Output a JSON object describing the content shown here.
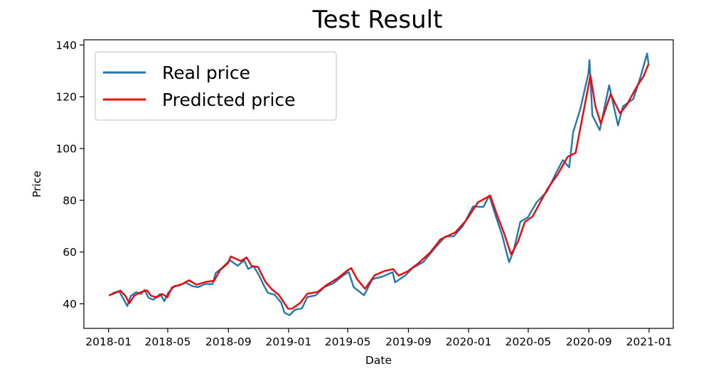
{
  "chart_data": {
    "type": "line",
    "title": "Test Result",
    "xlabel": "Date",
    "ylabel": "Price",
    "x_range": [
      "2017-11-12",
      "2021-02-19"
    ],
    "ylim": [
      30.5,
      142
    ],
    "xticks": [
      "2018-01",
      "2018-05",
      "2018-09",
      "2019-01",
      "2019-05",
      "2019-09",
      "2020-01",
      "2020-05",
      "2020-09",
      "2021-01"
    ],
    "yticks": [
      40,
      60,
      80,
      100,
      120,
      140
    ],
    "grid": false,
    "legend_position": "upper-left",
    "series": [
      {
        "name": "Real price",
        "color": "#1f77b4",
        "points": [
          [
            "2018-01-02",
            43.1
          ],
          [
            "2018-01-12",
            44.3
          ],
          [
            "2018-01-22",
            44.9
          ],
          [
            "2018-01-31",
            42.0
          ],
          [
            "2018-02-08",
            39.1
          ],
          [
            "2018-02-15",
            43.0
          ],
          [
            "2018-02-26",
            44.5
          ],
          [
            "2018-03-08",
            43.8
          ],
          [
            "2018-03-15",
            45.4
          ],
          [
            "2018-03-23",
            42.3
          ],
          [
            "2018-04-02",
            41.6
          ],
          [
            "2018-04-16",
            43.8
          ],
          [
            "2018-04-24",
            41.0
          ],
          [
            "2018-05-02",
            44.2
          ],
          [
            "2018-05-15",
            46.9
          ],
          [
            "2018-05-25",
            47.1
          ],
          [
            "2018-06-06",
            48.2
          ],
          [
            "2018-06-20",
            46.8
          ],
          [
            "2018-07-01",
            46.4
          ],
          [
            "2018-07-16",
            47.7
          ],
          [
            "2018-07-31",
            47.6
          ],
          [
            "2018-08-06",
            51.8
          ],
          [
            "2018-08-20",
            54.0
          ],
          [
            "2018-09-04",
            56.8
          ],
          [
            "2018-09-20",
            54.7
          ],
          [
            "2018-10-03",
            56.8
          ],
          [
            "2018-10-11",
            53.5
          ],
          [
            "2018-10-22",
            54.5
          ],
          [
            "2018-11-01",
            51.4
          ],
          [
            "2018-11-12",
            47.0
          ],
          [
            "2018-11-20",
            44.2
          ],
          [
            "2018-12-04",
            43.5
          ],
          [
            "2018-12-17",
            40.4
          ],
          [
            "2018-12-24",
            36.5
          ],
          [
            "2019-01-03",
            35.6
          ],
          [
            "2019-01-14",
            37.7
          ],
          [
            "2019-01-28",
            38.2
          ],
          [
            "2019-02-08",
            42.6
          ],
          [
            "2019-02-25",
            43.3
          ],
          [
            "2019-03-15",
            46.5
          ],
          [
            "2019-04-01",
            47.8
          ],
          [
            "2019-04-22",
            51.0
          ],
          [
            "2019-05-03",
            52.3
          ],
          [
            "2019-05-13",
            46.4
          ],
          [
            "2019-06-03",
            43.3
          ],
          [
            "2019-06-20",
            49.5
          ],
          [
            "2019-07-10",
            50.5
          ],
          [
            "2019-07-31",
            52.2
          ],
          [
            "2019-08-05",
            48.3
          ],
          [
            "2019-08-26",
            51.0
          ],
          [
            "2019-09-10",
            53.9
          ],
          [
            "2019-10-01",
            56.1
          ],
          [
            "2019-10-25",
            61.6
          ],
          [
            "2019-11-15",
            66.0
          ],
          [
            "2019-12-02",
            66.1
          ],
          [
            "2019-12-20",
            69.9
          ],
          [
            "2020-01-10",
            77.6
          ],
          [
            "2020-01-31",
            77.4
          ],
          [
            "2020-02-12",
            81.8
          ],
          [
            "2020-02-24",
            74.5
          ],
          [
            "2020-03-09",
            66.5
          ],
          [
            "2020-03-23",
            56.1
          ],
          [
            "2020-04-01",
            60.2
          ],
          [
            "2020-04-15",
            71.7
          ],
          [
            "2020-04-30",
            73.4
          ],
          [
            "2020-05-18",
            79.2
          ],
          [
            "2020-06-08",
            83.4
          ],
          [
            "2020-06-25",
            90.0
          ],
          [
            "2020-07-10",
            95.5
          ],
          [
            "2020-07-23",
            92.7
          ],
          [
            "2020-07-31",
            106.3
          ],
          [
            "2020-08-14",
            114.9
          ],
          [
            "2020-08-31",
            129.0
          ],
          [
            "2020-09-02",
            134.2
          ],
          [
            "2020-09-08",
            112.8
          ],
          [
            "2020-09-23",
            107.1
          ],
          [
            "2020-10-12",
            124.4
          ],
          [
            "2020-10-30",
            108.9
          ],
          [
            "2020-11-09",
            116.3
          ],
          [
            "2020-11-30",
            119.1
          ],
          [
            "2020-12-15",
            127.9
          ],
          [
            "2020-12-28",
            136.7
          ],
          [
            "2020-12-31",
            132.7
          ]
        ]
      },
      {
        "name": "Predicted price",
        "color": "#ff0000",
        "points": [
          [
            "2018-01-02",
            43.3
          ],
          [
            "2018-01-15",
            44.2
          ],
          [
            "2018-01-25",
            45.1
          ],
          [
            "2018-02-05",
            42.8
          ],
          [
            "2018-02-12",
            40.2
          ],
          [
            "2018-02-22",
            43.1
          ],
          [
            "2018-03-05",
            44.3
          ],
          [
            "2018-03-20",
            45.2
          ],
          [
            "2018-03-28",
            43.1
          ],
          [
            "2018-04-09",
            42.5
          ],
          [
            "2018-04-20",
            43.8
          ],
          [
            "2018-04-30",
            42.5
          ],
          [
            "2018-05-10",
            46.4
          ],
          [
            "2018-05-30",
            47.6
          ],
          [
            "2018-06-13",
            49.1
          ],
          [
            "2018-06-28",
            47.4
          ],
          [
            "2018-07-18",
            48.5
          ],
          [
            "2018-08-03",
            48.9
          ],
          [
            "2018-08-15",
            53.0
          ],
          [
            "2018-08-31",
            55.7
          ],
          [
            "2018-09-06",
            58.3
          ],
          [
            "2018-09-26",
            56.5
          ],
          [
            "2018-10-08",
            57.9
          ],
          [
            "2018-10-18",
            54.6
          ],
          [
            "2018-10-31",
            54.2
          ],
          [
            "2018-11-15",
            48.5
          ],
          [
            "2018-11-28",
            45.6
          ],
          [
            "2018-12-12",
            43.5
          ],
          [
            "2018-12-31",
            38.1
          ],
          [
            "2019-01-08",
            38.1
          ],
          [
            "2019-01-25",
            40.4
          ],
          [
            "2019-02-08",
            43.9
          ],
          [
            "2019-03-01",
            44.6
          ],
          [
            "2019-03-20",
            47.4
          ],
          [
            "2019-04-10",
            49.8
          ],
          [
            "2019-05-01",
            53.0
          ],
          [
            "2019-05-08",
            53.8
          ],
          [
            "2019-05-20",
            49.5
          ],
          [
            "2019-06-05",
            45.8
          ],
          [
            "2019-06-25",
            51.1
          ],
          [
            "2019-07-15",
            52.7
          ],
          [
            "2019-08-01",
            53.4
          ],
          [
            "2019-08-12",
            50.9
          ],
          [
            "2019-08-30",
            52.5
          ],
          [
            "2019-09-20",
            55.5
          ],
          [
            "2019-10-15",
            59.8
          ],
          [
            "2019-11-05",
            64.9
          ],
          [
            "2019-12-05",
            67.6
          ],
          [
            "2019-12-27",
            72.2
          ],
          [
            "2020-01-20",
            79.2
          ],
          [
            "2020-02-14",
            81.8
          ],
          [
            "2020-02-28",
            74.2
          ],
          [
            "2020-03-13",
            67.2
          ],
          [
            "2020-03-27",
            59.1
          ],
          [
            "2020-04-10",
            63.9
          ],
          [
            "2020-04-24",
            71.6
          ],
          [
            "2020-05-10",
            73.8
          ],
          [
            "2020-06-10",
            84.7
          ],
          [
            "2020-06-30",
            90.1
          ],
          [
            "2020-07-20",
            96.8
          ],
          [
            "2020-08-05",
            98.3
          ],
          [
            "2020-08-20",
            113.1
          ],
          [
            "2020-09-04",
            128.2
          ],
          [
            "2020-09-14",
            116.4
          ],
          [
            "2020-09-25",
            109.7
          ],
          [
            "2020-10-15",
            121.0
          ],
          [
            "2020-11-03",
            113.6
          ],
          [
            "2020-11-16",
            116.6
          ],
          [
            "2020-12-07",
            123.9
          ],
          [
            "2020-12-21",
            128.0
          ],
          [
            "2020-12-31",
            132.7
          ]
        ]
      }
    ]
  }
}
